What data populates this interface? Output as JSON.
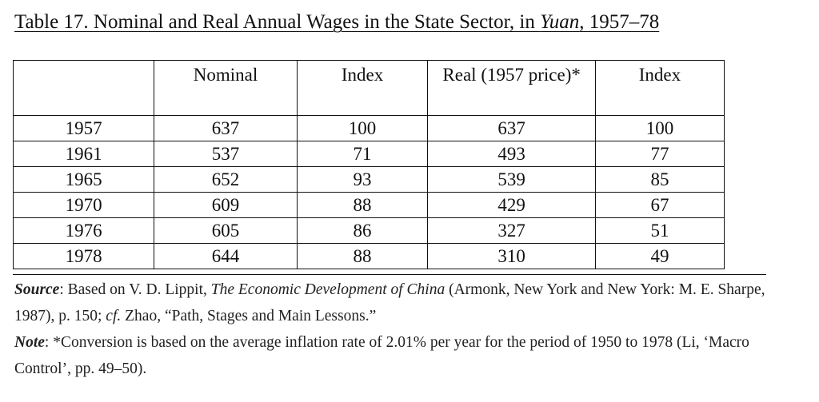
{
  "title": {
    "prefix": "Table 17. Nominal and Real Annual Wages in the State Sector, in ",
    "italic": "Yuan",
    "suffix": ", 1957–78"
  },
  "table": {
    "headers": [
      "",
      "Nominal",
      "Index",
      "Real (1957 price)*",
      "Index"
    ],
    "rows": [
      [
        "1957",
        "637",
        "100",
        "637",
        "100"
      ],
      [
        "1961",
        "537",
        "71",
        "493",
        "77"
      ],
      [
        "1965",
        "652",
        "93",
        "539",
        "85"
      ],
      [
        "1970",
        "609",
        "88",
        "429",
        "67"
      ],
      [
        "1976",
        "605",
        "86",
        "327",
        "51"
      ],
      [
        "1978",
        "644",
        "88",
        "310",
        "49"
      ]
    ]
  },
  "source": {
    "label": "Source",
    "text1": ": Based on V. D. Lippit, ",
    "book": "The Economic Development of China",
    "text2": " (Armonk, New York and New York: M. E. Sharpe, 1987), p. 150; ",
    "cf": "cf.",
    "text3": " Zhao, “Path, Stages and Main Lessons.”"
  },
  "note": {
    "label": "Note",
    "text": ": *Conversion is based on the average inflation rate of 2.01% per year for the period of 1950 to 1978 (Li, ‘Macro Control’, pp. 49–50)."
  }
}
